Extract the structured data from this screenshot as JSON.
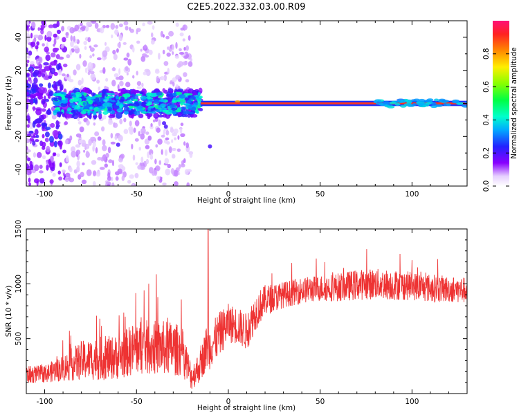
{
  "figure": {
    "title": "C2E5.2022.332.03.00.R09"
  },
  "chart_data": [
    {
      "type": "heatmap",
      "xlabel": "Height of straight line (km)",
      "ylabel": "Frequency (Hz)",
      "xlim": [
        -110,
        130
      ],
      "ylim": [
        -50,
        50
      ],
      "xticks": [
        -100,
        -50,
        0,
        50,
        100
      ],
      "yticks": [
        -40,
        -20,
        0,
        20,
        40
      ],
      "description_series": [
        {
          "x_range": [
            -110,
            -88
          ],
          "frequency_spread_hz": 50,
          "normalized_amplitude": 0.15
        },
        {
          "x_range": [
            -95,
            -15
          ],
          "frequency_spread_hz": 8,
          "normalized_amplitude": 0.3
        },
        {
          "x_range": [
            -15,
            130
          ],
          "frequency_spread_hz": 1,
          "normalized_amplitude": 0.85
        },
        {
          "x_range": [
            80,
            130
          ],
          "frequency_spread_hz": 3,
          "normalized_amplitude": 0.35
        }
      ],
      "colorbar": {
        "label": "Normalized spectral amplitude",
        "range": [
          0.0,
          1.0
        ],
        "ticks": [
          "0.0",
          "0.2",
          "0.4",
          "0.6",
          "0.8"
        ],
        "tick_values": [
          0.0,
          0.2,
          0.4,
          0.6,
          0.8
        ]
      }
    },
    {
      "type": "line",
      "xlabel": "Height of straight line (km)",
      "ylabel": "SNR (10 * v/v)",
      "xlim": [
        -110,
        130
      ],
      "ylim": [
        0,
        1500
      ],
      "xticks": [
        -100,
        -50,
        0,
        50,
        100
      ],
      "yticks": [
        500,
        1000,
        1500
      ],
      "color": "#ee3333",
      "x": [
        -110,
        -100,
        -90,
        -80,
        -70,
        -60,
        -50,
        -40,
        -30,
        -25,
        -20,
        -15,
        -12,
        -10,
        -5,
        0,
        5,
        10,
        15,
        20,
        30,
        40,
        50,
        60,
        70,
        80,
        90,
        100,
        110,
        120,
        130
      ],
      "values": [
        170,
        180,
        230,
        300,
        320,
        330,
        420,
        420,
        410,
        380,
        150,
        260,
        420,
        420,
        540,
        640,
        620,
        560,
        750,
        850,
        900,
        940,
        960,
        970,
        990,
        1000,
        990,
        980,
        960,
        950,
        940
      ],
      "spread": [
        80,
        80,
        120,
        180,
        200,
        200,
        250,
        250,
        250,
        220,
        120,
        150,
        200,
        200,
        200,
        180,
        170,
        170,
        170,
        140,
        120,
        120,
        120,
        130,
        140,
        140,
        140,
        130,
        130,
        120,
        120
      ]
    }
  ]
}
